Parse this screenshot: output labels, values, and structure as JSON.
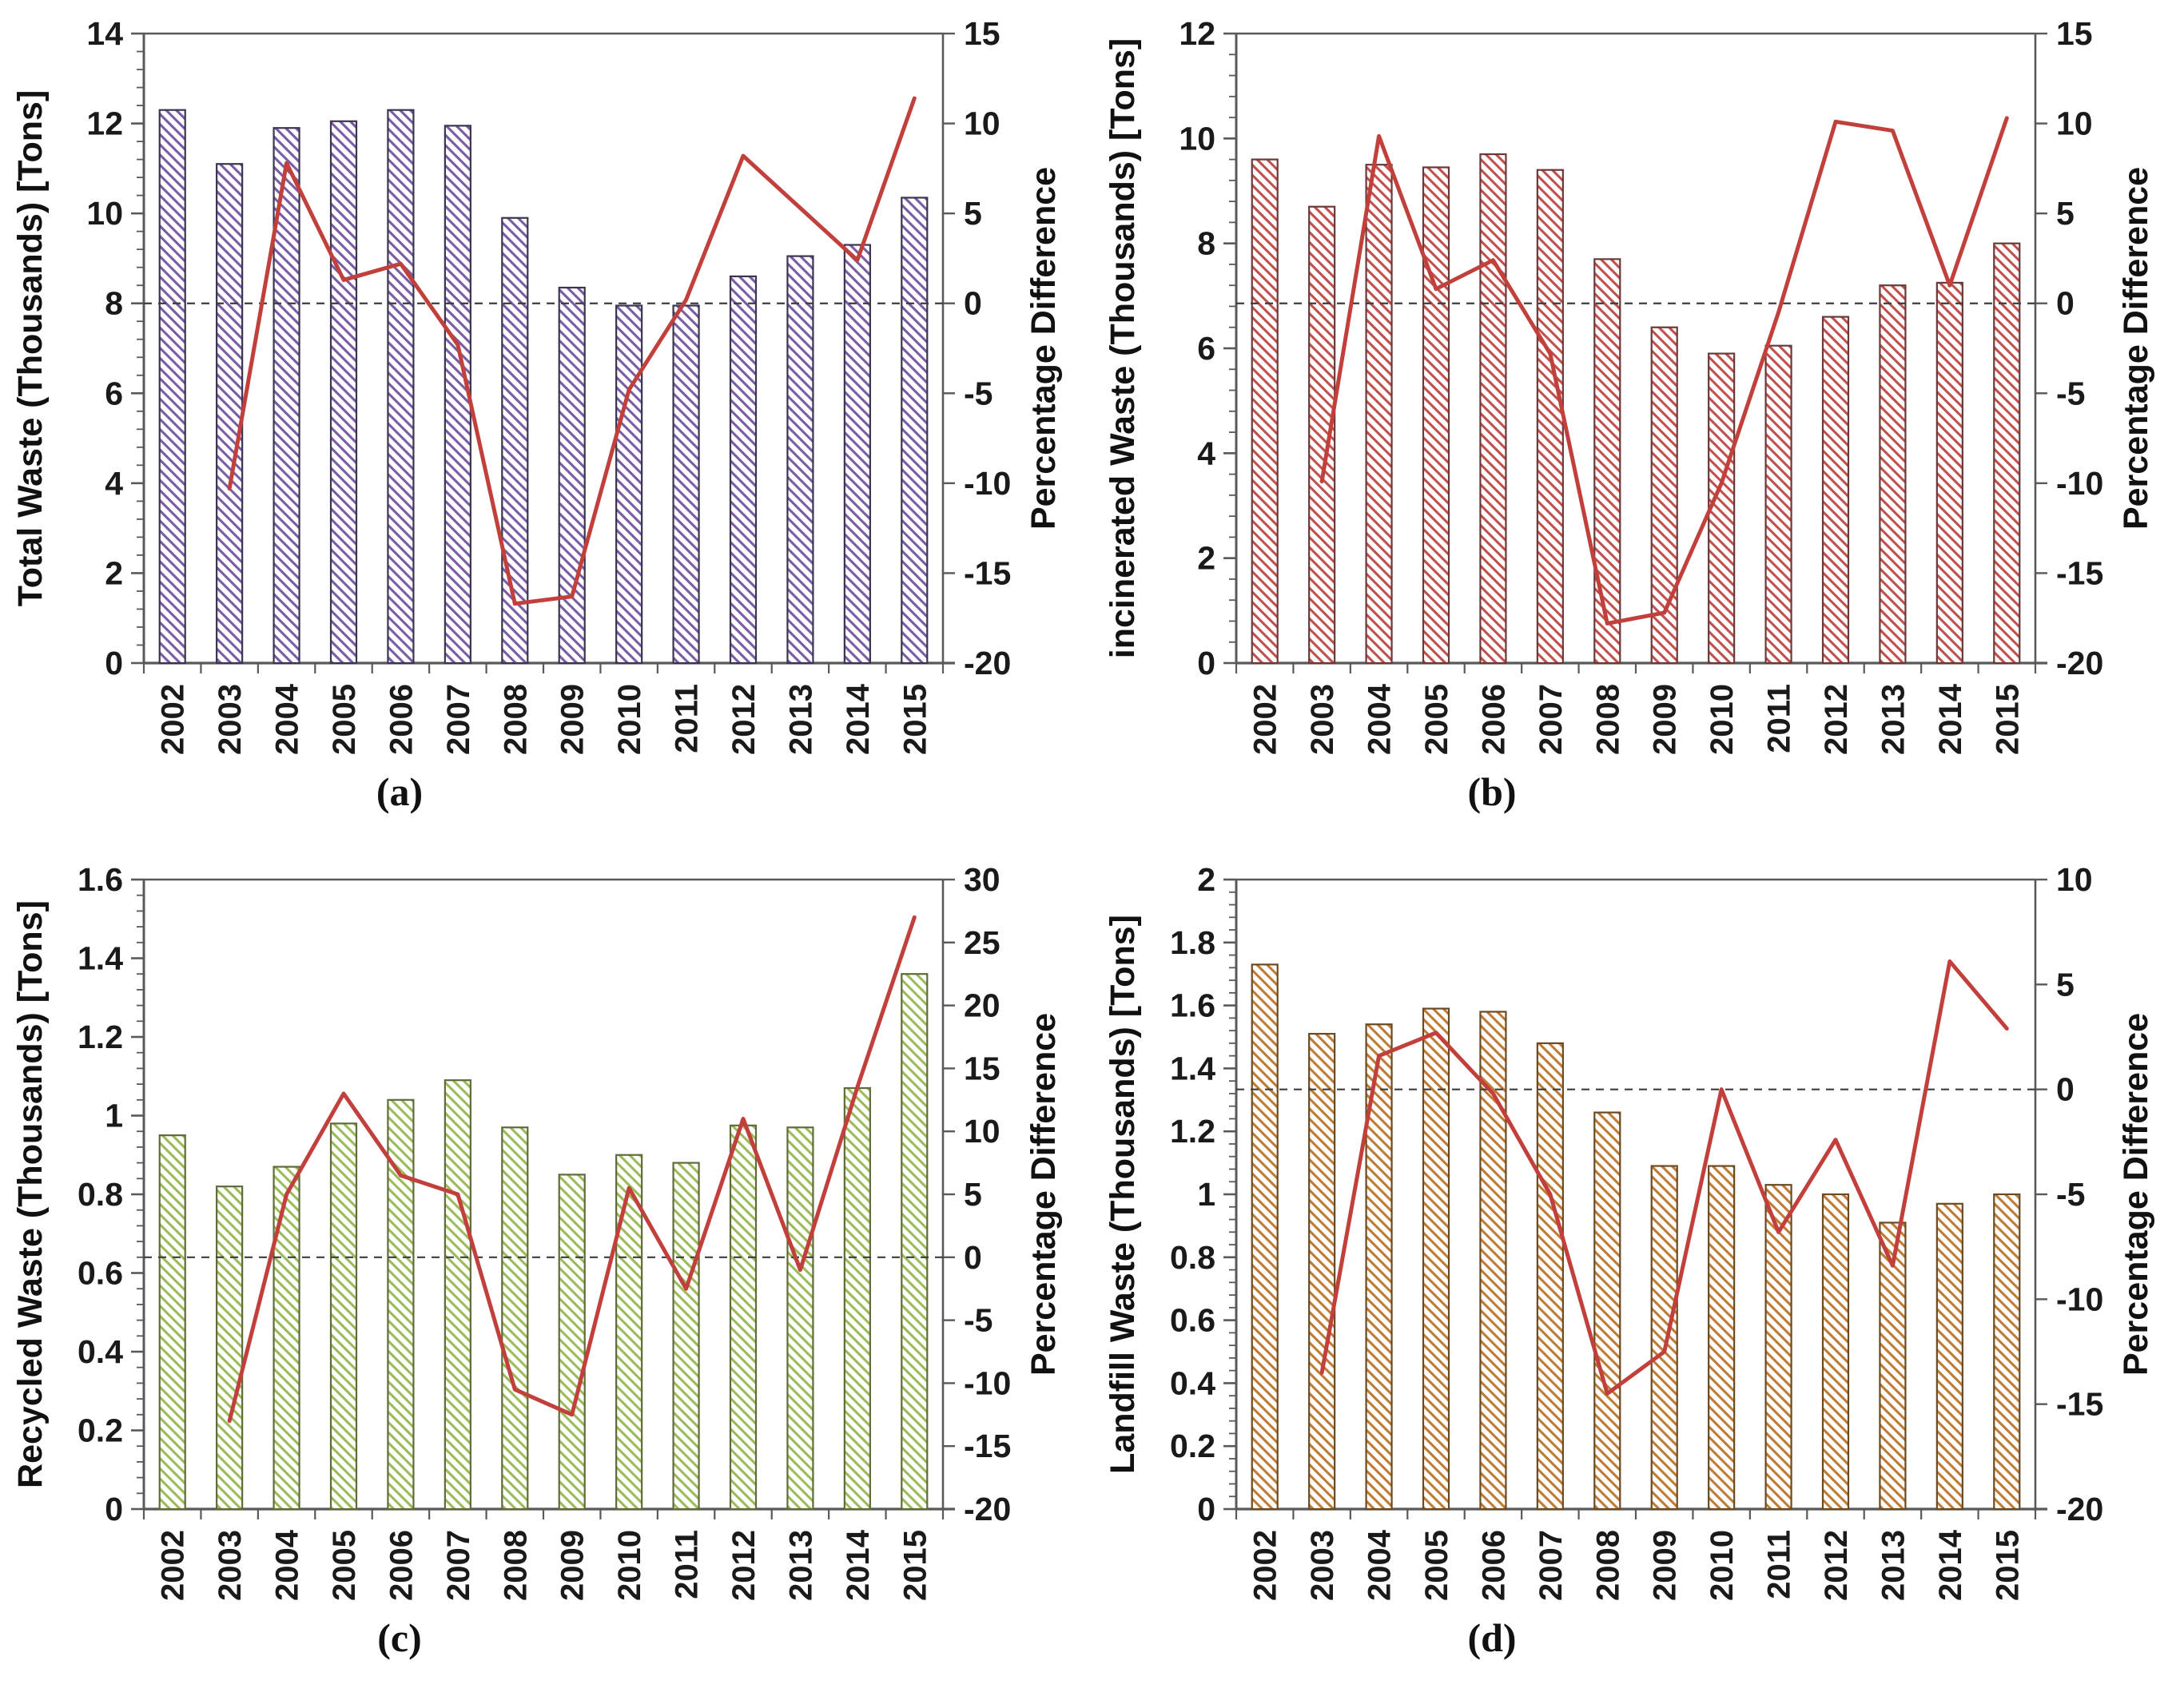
{
  "figure": {
    "background_color": "#ffffff",
    "line_color": "#c2403c",
    "zero_line_style": "dashed",
    "x_tick_label_rotation_deg": 90
  },
  "chart_data": [
    {
      "id": "a",
      "type": "bar",
      "subtype": "bar+line-dual-axis",
      "caption": "(a)",
      "ylabel_left": "Total Waste (Thousands) [Tons]",
      "ylabel_right": "Percentage Difference",
      "categories": [
        "2002",
        "2003",
        "2004",
        "2005",
        "2006",
        "2007",
        "2008",
        "2009",
        "2010",
        "2011",
        "2012",
        "2013",
        "2014",
        "2015"
      ],
      "bar_series": {
        "name": "Total Waste (Thousands) [Tons]",
        "color": "#7a5ba5",
        "border": "#3a3550",
        "values": [
          12.3,
          11.1,
          11.9,
          12.05,
          12.3,
          11.95,
          9.9,
          8.35,
          7.95,
          7.95,
          8.6,
          9.05,
          9.3,
          10.35
        ]
      },
      "line_series": {
        "name": "Percentage Difference",
        "color": "#c2403c",
        "values": [
          null,
          -10.3,
          7.8,
          1.3,
          2.2,
          -2.3,
          -16.7,
          -16.3,
          -4.8,
          0.2,
          8.2,
          5.3,
          2.4,
          11.4
        ]
      },
      "left_axis": {
        "min": 0,
        "max": 14,
        "step": 2
      },
      "right_axis": {
        "min": -20,
        "max": 15,
        "step": 5
      },
      "zero_reference_line": true,
      "grid": false,
      "legend": false
    },
    {
      "id": "b",
      "type": "bar",
      "subtype": "bar+line-dual-axis",
      "caption": "(b)",
      "ylabel_left": "incinerated Waste (Thousands) [Tons]",
      "ylabel_right": "Percentage Difference",
      "categories": [
        "2002",
        "2003",
        "2004",
        "2005",
        "2006",
        "2007",
        "2008",
        "2009",
        "2010",
        "2011",
        "2012",
        "2013",
        "2014",
        "2015"
      ],
      "bar_series": {
        "name": "incinerated Waste (Thousands) [Tons]",
        "color": "#c0504d",
        "border": "#6b3a38",
        "values": [
          9.6,
          8.7,
          9.5,
          9.45,
          9.7,
          9.4,
          7.7,
          6.4,
          5.9,
          6.05,
          6.6,
          7.2,
          7.25,
          8.0
        ]
      },
      "line_series": {
        "name": "Percentage Difference",
        "color": "#c2403c",
        "values": [
          null,
          -9.9,
          9.3,
          0.8,
          2.4,
          -2.8,
          -17.8,
          -17.2,
          -10.0,
          -0.5,
          10.1,
          9.6,
          1.0,
          10.3
        ]
      },
      "left_axis": {
        "min": 0,
        "max": 12,
        "step": 2
      },
      "right_axis": {
        "min": -20,
        "max": 15,
        "step": 5
      },
      "zero_reference_line": true,
      "grid": false,
      "legend": false
    },
    {
      "id": "c",
      "type": "bar",
      "subtype": "bar+line-dual-axis",
      "caption": "(c)",
      "ylabel_left": "Recycled Waste (Thousands) [Tons]",
      "ylabel_right": "Percentage Difference",
      "categories": [
        "2002",
        "2003",
        "2004",
        "2005",
        "2006",
        "2007",
        "2008",
        "2009",
        "2010",
        "2011",
        "2012",
        "2013",
        "2014",
        "2015"
      ],
      "bar_series": {
        "name": "Recycled Waste (Thousands) [Tons]",
        "color": "#9bbb59",
        "border": "#5f6b38",
        "values": [
          0.95,
          0.82,
          0.87,
          0.98,
          1.04,
          1.09,
          0.97,
          0.85,
          0.9,
          0.88,
          0.975,
          0.97,
          1.07,
          1.36
        ]
      },
      "line_series": {
        "name": "Percentage Difference",
        "color": "#c2403c",
        "values": [
          null,
          -13.0,
          5.0,
          13.0,
          6.5,
          5.0,
          -10.5,
          -12.5,
          5.5,
          -2.5,
          11.0,
          -1.0,
          13.5,
          27.0
        ]
      },
      "left_axis": {
        "min": 0,
        "max": 1.6,
        "step": 0.2
      },
      "right_axis": {
        "min": -20,
        "max": 30,
        "step": 5
      },
      "zero_reference_line": true,
      "grid": false,
      "legend": false
    },
    {
      "id": "d",
      "type": "bar",
      "subtype": "bar+line-dual-axis",
      "caption": "(d)",
      "ylabel_left": "Landfill Waste (Thousands) [Tons]",
      "ylabel_right": "Percentage Difference",
      "categories": [
        "2002",
        "2003",
        "2004",
        "2005",
        "2006",
        "2007",
        "2008",
        "2009",
        "2010",
        "2011",
        "2012",
        "2013",
        "2014",
        "2015"
      ],
      "bar_series": {
        "name": "Landfill Waste (Thousands) [Tons]",
        "color": "#bf7b34",
        "border": "#6b4a22",
        "values": [
          1.73,
          1.51,
          1.54,
          1.59,
          1.58,
          1.48,
          1.26,
          1.09,
          1.09,
          1.03,
          1.0,
          0.91,
          0.97,
          1.0
        ]
      },
      "line_series": {
        "name": "Percentage Difference",
        "color": "#c2403c",
        "values": [
          null,
          -13.5,
          1.6,
          2.7,
          -0.2,
          -5.0,
          -14.5,
          -12.5,
          0.0,
          -6.8,
          -2.4,
          -8.4,
          6.1,
          2.9
        ]
      },
      "left_axis": {
        "min": 0,
        "max": 2,
        "step": 0.2
      },
      "right_axis": {
        "min": -20,
        "max": 10,
        "step": 5
      },
      "zero_reference_line": true,
      "grid": false,
      "legend": false
    }
  ]
}
